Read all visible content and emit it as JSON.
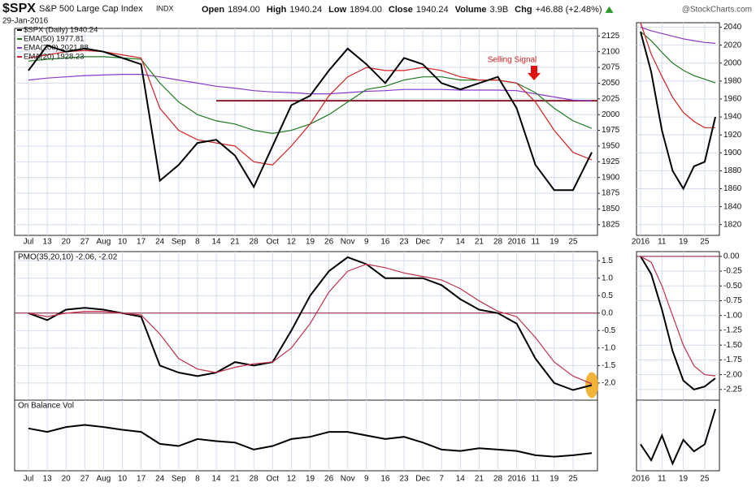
{
  "header": {
    "symbol": "$SPX",
    "name": "S&P 500 Large Cap Index",
    "exchange": "INDX",
    "date": "29-Jan-2016",
    "quote": [
      {
        "label": "Open",
        "value": "1894.00"
      },
      {
        "label": "High",
        "value": "1940.24"
      },
      {
        "label": "Low",
        "value": "1894.00"
      },
      {
        "label": "Close",
        "value": "1940.24"
      },
      {
        "label": "Volume",
        "value": "3.9B"
      },
      {
        "label": "Chg",
        "value": "+46.88 (+2.48%)"
      }
    ],
    "watermark": "@StockCharts.com"
  },
  "chart_data": [
    {
      "type": "line",
      "annotation": "Selling Signal",
      "categories": [
        "Jul",
        "13",
        "20",
        "27",
        "Aug",
        "10",
        "17",
        "24",
        "Sep",
        "8",
        "14",
        "21",
        "28",
        "Oct",
        "12",
        "19",
        "26",
        "Nov",
        "9",
        "16",
        "23",
        "Dec",
        "7",
        "14",
        "21",
        "28",
        "2016",
        "11",
        "19",
        "25",
        null
      ],
      "series": [
        {
          "name": "$SPX (Daily) 1940.24",
          "color": "#000000",
          "values": [
            2070,
            2110,
            2100,
            2105,
            2100,
            2090,
            2080,
            1895,
            1920,
            1955,
            1960,
            1935,
            1885,
            1950,
            2015,
            2030,
            2070,
            2105,
            2080,
            2050,
            2090,
            2080,
            2050,
            2040,
            2050,
            2060,
            2010,
            1920,
            1880,
            1880,
            1940
          ]
        },
        {
          "name": "EMA(50) 1977.81",
          "color": "#1e7a1e",
          "values": [
            2085,
            2088,
            2090,
            2092,
            2092,
            2090,
            2088,
            2050,
            2020,
            2000,
            1990,
            1985,
            1975,
            1970,
            1975,
            1985,
            2000,
            2020,
            2040,
            2045,
            2055,
            2060,
            2060,
            2055,
            2055,
            2055,
            2050,
            2035,
            2010,
            1990,
            1978
          ]
        },
        {
          "name": "EMA(200) 2021.88",
          "color": "#8a3ac9",
          "values": [
            2055,
            2058,
            2060,
            2062,
            2063,
            2064,
            2064,
            2060,
            2055,
            2050,
            2045,
            2042,
            2038,
            2036,
            2035,
            2033,
            2033,
            2035,
            2037,
            2038,
            2040,
            2040,
            2040,
            2039,
            2039,
            2039,
            2038,
            2033,
            2028,
            2023,
            2022
          ]
        },
        {
          "name": "EMA(20) 1928.23",
          "color": "#d42020",
          "values": [
            2090,
            2095,
            2100,
            2102,
            2100,
            2095,
            2090,
            2010,
            1975,
            1960,
            1955,
            1950,
            1925,
            1920,
            1950,
            1985,
            2030,
            2060,
            2075,
            2070,
            2070,
            2075,
            2070,
            2060,
            2055,
            2055,
            2050,
            2020,
            1975,
            1940,
            1928
          ]
        }
      ],
      "hlines": [
        {
          "value": 2022,
          "color": "#8b1a2a"
        }
      ],
      "ylim": [
        1808,
        2137
      ],
      "yticks": [
        1825,
        1850,
        1875,
        1900,
        1925,
        1950,
        1975,
        2000,
        2025,
        2050,
        2075,
        2100,
        2125
      ],
      "grid": true
    },
    {
      "type": "line",
      "title": "PMO(35,20,10) -2.06, -2.02",
      "series": [
        {
          "color": "#000000",
          "values": [
            0.0,
            -0.2,
            0.1,
            0.15,
            0.1,
            0.0,
            -0.1,
            -1.5,
            -1.7,
            -1.8,
            -1.7,
            -1.4,
            -1.5,
            -1.4,
            -0.5,
            0.5,
            1.2,
            1.6,
            1.4,
            1.0,
            1.0,
            1.0,
            0.8,
            0.4,
            0.1,
            0.0,
            -0.3,
            -1.3,
            -2.0,
            -2.2,
            -2.06
          ]
        },
        {
          "color": "#c0304a",
          "values": [
            0.0,
            -0.1,
            0.0,
            0.05,
            0.05,
            0.0,
            -0.05,
            -0.6,
            -1.3,
            -1.6,
            -1.7,
            -1.55,
            -1.45,
            -1.4,
            -1.0,
            -0.3,
            0.6,
            1.2,
            1.4,
            1.3,
            1.15,
            1.05,
            0.95,
            0.7,
            0.35,
            0.05,
            -0.1,
            -0.7,
            -1.4,
            -1.8,
            -2.02
          ]
        }
      ],
      "hlines": [
        {
          "value": 0,
          "color": "#8b1a3a"
        }
      ],
      "highlight": true,
      "ylim": [
        -2.49,
        1.76
      ],
      "yticks": [
        {
          "value": -2,
          "label": "-2.0"
        },
        -1.5,
        {
          "value": -1,
          "label": "-1.0"
        },
        -0.5,
        {
          "value": 0,
          "label": "0.0"
        },
        0.5,
        {
          "value": 1,
          "label": "1.0"
        },
        1.5
      ],
      "grid": true
    },
    {
      "type": "line",
      "title": "On Balance Vol",
      "series": [
        {
          "color": "#000000",
          "values": [
            60,
            55,
            62,
            65,
            62,
            58,
            55,
            38,
            35,
            45,
            42,
            40,
            30,
            35,
            45,
            48,
            55,
            55,
            50,
            45,
            48,
            40,
            30,
            28,
            32,
            30,
            28,
            22,
            20,
            22,
            25
          ]
        }
      ],
      "ylim": [
        0,
        100
      ],
      "grid": true
    },
    {
      "type": "line",
      "categories": [
        "2016",
        null,
        "11",
        null,
        "19",
        null,
        "25",
        null
      ],
      "series": [
        {
          "color": "#000000",
          "values": [
            2035,
            1990,
            1925,
            1880,
            1860,
            1885,
            1890,
            1940
          ]
        },
        {
          "color": "#1e7a1e",
          "values": [
            2035,
            2025,
            2012,
            2000,
            1992,
            1986,
            1982,
            1978
          ]
        },
        {
          "color": "#8a3ac9",
          "values": [
            2040,
            2036,
            2033,
            2030,
            2027,
            2025,
            2023,
            2022
          ]
        },
        {
          "color": "#d42020",
          "values": [
            2045,
            2010,
            1985,
            1962,
            1945,
            1935,
            1928,
            1928
          ]
        }
      ],
      "ylim": [
        1808,
        2045
      ],
      "yticks": [
        1820,
        1840,
        1860,
        1880,
        1900,
        1920,
        1940,
        1960,
        1980,
        2000,
        2020,
        2040
      ],
      "grid": true
    },
    {
      "type": "line",
      "series": [
        {
          "color": "#000000",
          "values": [
            0,
            -0.3,
            -0.9,
            -1.6,
            -2.1,
            -2.25,
            -2.2,
            -2.06
          ]
        },
        {
          "color": "#c0304a",
          "values": [
            0,
            -0.1,
            -0.5,
            -1.0,
            -1.5,
            -1.85,
            -2.0,
            -2.02
          ]
        }
      ],
      "hlines": [
        {
          "value": 0,
          "color": "#8b1a3a"
        }
      ],
      "ylim": [
        -2.43,
        0.08
      ],
      "yticks": [
        -2.25,
        {
          "value": -2,
          "label": "-2.00"
        },
        -1.75,
        {
          "value": -1.5,
          "label": "-1.50"
        },
        -1.25,
        {
          "value": -1,
          "label": "-1.00"
        },
        -0.75,
        {
          "value": -0.5,
          "label": "-0.50"
        },
        -0.25,
        {
          "value": 0,
          "label": "0.00"
        }
      ],
      "grid": true
    },
    {
      "type": "line",
      "series": [
        {
          "color": "#000000",
          "values": [
            30,
            12,
            40,
            8,
            35,
            22,
            30,
            70
          ]
        }
      ],
      "ylim": [
        0,
        80
      ],
      "grid": true
    }
  ]
}
